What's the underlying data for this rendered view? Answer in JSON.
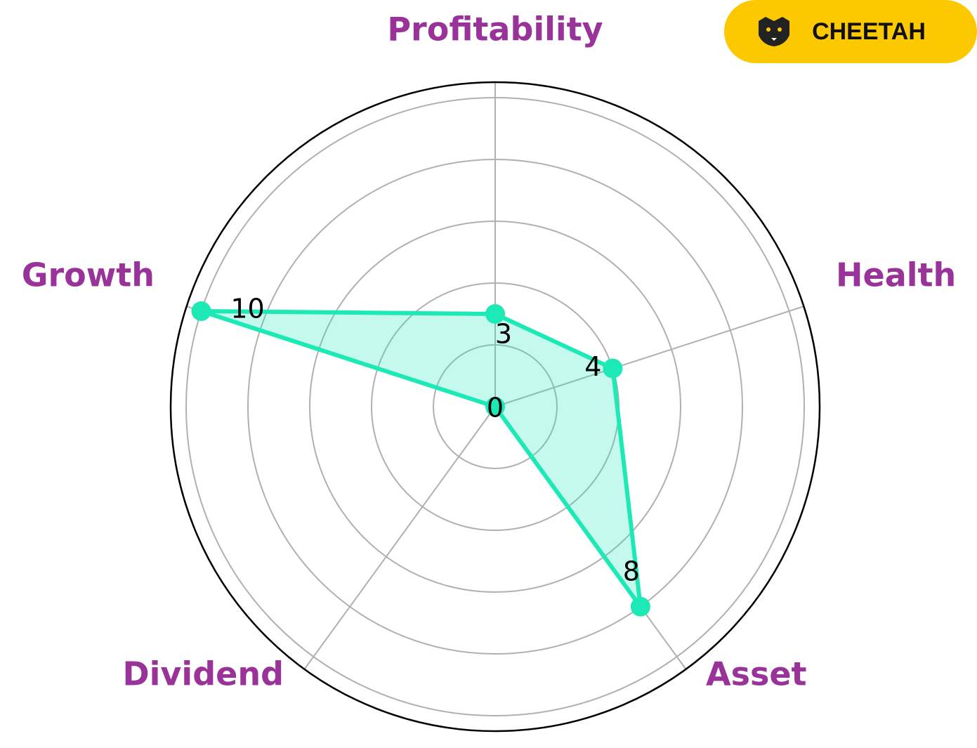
{
  "chart_data": {
    "type": "radar",
    "categories": [
      "Profitability",
      "Health",
      "Asset",
      "Dividend",
      "Growth"
    ],
    "values": [
      3,
      4,
      8,
      0,
      10
    ],
    "color": "#1de9b6",
    "rlim": [
      0,
      10.5
    ],
    "rticks": [
      2,
      4,
      6,
      8,
      10
    ],
    "grid": true
  },
  "badge": "CHEETAH"
}
